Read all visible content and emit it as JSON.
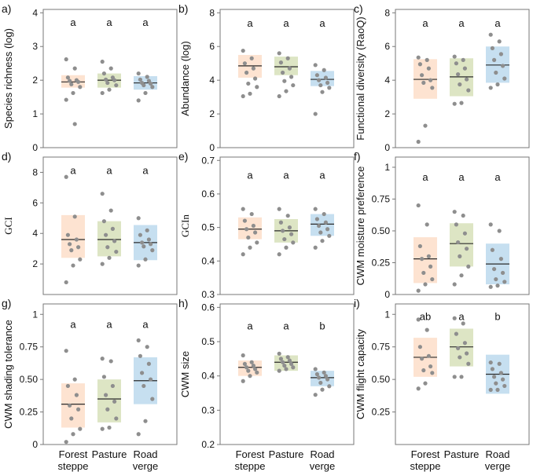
{
  "colors": {
    "forest_steppe": "#fde3d1",
    "pasture": "#dde5c4",
    "road_verge": "#c6dff0",
    "point": "#8e8e8e",
    "median": "#2b2b2b",
    "frame": "#777777"
  },
  "x_axis": {
    "categories": [
      "Forest steppe",
      "Pasture",
      "Road verge"
    ],
    "label_lines": [
      [
        "Forest",
        "steppe"
      ],
      [
        "Pasture",
        ""
      ],
      [
        "Road",
        "verge"
      ]
    ]
  },
  "chart_data": [
    {
      "panel": "a)",
      "type": "box_strip",
      "ylabel": "Species richness (log)",
      "ylabel_font": "sans",
      "ylim": [
        0,
        4.1
      ],
      "ticks": [
        0,
        1,
        2,
        3,
        4
      ],
      "tick_labels": [
        "0",
        "1",
        "2",
        "3",
        "4"
      ],
      "letters": [
        "a",
        "a",
        "a"
      ],
      "letter_y": 3.7,
      "groups": [
        {
          "name": "Forest steppe",
          "q1": 1.78,
          "median": 1.95,
          "q3": 2.15,
          "points": [
            2.62,
            2.35,
            2.08,
            2.0,
            1.98,
            1.95,
            1.88,
            1.8,
            1.62,
            1.42,
            0.7
          ]
        },
        {
          "name": "Pasture",
          "q1": 1.78,
          "median": 2.0,
          "q3": 2.2,
          "points": [
            2.55,
            2.35,
            2.2,
            2.08,
            2.02,
            2.0,
            1.92,
            1.85,
            1.72,
            1.62
          ]
        },
        {
          "name": "Road verge",
          "q1": 1.72,
          "median": 1.92,
          "q3": 2.12,
          "points": [
            2.2,
            2.1,
            2.02,
            1.98,
            1.92,
            1.9,
            1.85,
            1.8,
            1.62,
            1.4
          ]
        }
      ]
    },
    {
      "panel": "b)",
      "type": "box_strip",
      "ylabel": "Abundance (log)",
      "ylabel_font": "sans",
      "ylim": [
        0,
        8.2
      ],
      "ticks": [
        0,
        2,
        4,
        6,
        8
      ],
      "tick_labels": [
        "0",
        "2",
        "4",
        "6",
        "8"
      ],
      "letters": [
        "a",
        "a",
        "a"
      ],
      "letter_y": 7.35,
      "groups": [
        {
          "name": "Forest steppe",
          "q1": 4.15,
          "median": 4.85,
          "q3": 5.5,
          "points": [
            5.75,
            5.3,
            5.0,
            4.7,
            4.45,
            4.1,
            3.8,
            3.6,
            3.2,
            3.05
          ]
        },
        {
          "name": "Pasture",
          "q1": 4.3,
          "median": 4.8,
          "q3": 5.4,
          "points": [
            5.6,
            5.3,
            5.05,
            4.7,
            4.45,
            4.2,
            3.95,
            3.7,
            3.35,
            3.05
          ]
        },
        {
          "name": "Road verge",
          "q1": 3.65,
          "median": 4.05,
          "q3": 4.55,
          "points": [
            4.9,
            4.6,
            4.3,
            4.15,
            4.0,
            3.85,
            3.7,
            3.55,
            3.3,
            2.0
          ]
        }
      ]
    },
    {
      "panel": "c)",
      "type": "box_strip",
      "ylabel": "Functional diversity (RaoQ)",
      "ylabel_font": "sans",
      "ylim": [
        0,
        8.2
      ],
      "ticks": [
        0,
        2,
        4,
        6,
        8
      ],
      "tick_labels": [
        "0",
        "2",
        "4",
        "6",
        "8"
      ],
      "letters": [
        "a",
        "a",
        "a"
      ],
      "letter_y": 7.35,
      "groups": [
        {
          "name": "Forest steppe",
          "q1": 2.9,
          "median": 4.05,
          "q3": 5.25,
          "points": [
            5.35,
            5.2,
            4.95,
            4.7,
            4.3,
            4.0,
            3.85,
            3.55,
            1.3,
            0.35
          ]
        },
        {
          "name": "Pasture",
          "q1": 3.05,
          "median": 4.2,
          "q3": 5.3,
          "points": [
            5.4,
            5.2,
            5.0,
            4.7,
            4.35,
            4.05,
            3.75,
            3.4,
            2.65,
            2.6
          ]
        },
        {
          "name": "Road verge",
          "q1": 3.85,
          "median": 4.9,
          "q3": 6.0,
          "points": [
            6.7,
            6.3,
            5.9,
            5.55,
            5.2,
            4.85,
            4.45,
            4.1,
            3.75,
            3.55
          ]
        }
      ]
    },
    {
      "panel": "d)",
      "type": "box_strip",
      "ylabel": "GCI",
      "ylabel_font": "serif",
      "ylim": [
        0,
        9
      ],
      "ticks": [
        2,
        4,
        6,
        8
      ],
      "tick_labels": [
        "2",
        "4",
        "6",
        "8"
      ],
      "letters": [
        "a",
        "a",
        "a"
      ],
      "letter_y": 8.1,
      "groups": [
        {
          "name": "Forest steppe",
          "q1": 2.4,
          "median": 3.6,
          "q3": 5.2,
          "points": [
            7.7,
            5.1,
            3.9,
            3.6,
            3.3,
            3.1,
            2.9,
            2.3,
            1.9,
            0.8
          ]
        },
        {
          "name": "Pasture",
          "q1": 2.5,
          "median": 3.6,
          "q3": 4.8,
          "points": [
            6.6,
            5.5,
            4.8,
            4.3,
            3.9,
            3.5,
            3.1,
            2.8,
            2.4,
            2.0
          ]
        },
        {
          "name": "Road verge",
          "q1": 2.25,
          "median": 3.4,
          "q3": 4.55,
          "points": [
            5.0,
            4.2,
            3.9,
            3.6,
            3.4,
            3.3,
            3.15,
            2.9,
            2.3,
            1.9
          ]
        }
      ]
    },
    {
      "panel": "e)",
      "type": "box_strip",
      "ylabel": "GCIn",
      "ylabel_font": "serif",
      "ylim": [
        0.3,
        0.71
      ],
      "ticks": [
        0.3,
        0.4,
        0.5,
        0.6,
        0.7
      ],
      "tick_labels": [
        "0.3",
        "0.4",
        "0.5",
        "0.6",
        "0.7"
      ],
      "letters": [
        "a",
        "a",
        "a"
      ],
      "letter_y": 0.655,
      "groups": [
        {
          "name": "Forest steppe",
          "q1": 0.465,
          "median": 0.495,
          "q3": 0.53,
          "points": [
            0.555,
            0.54,
            0.52,
            0.505,
            0.495,
            0.485,
            0.47,
            0.455,
            0.44,
            0.42
          ]
        },
        {
          "name": "Pasture",
          "q1": 0.455,
          "median": 0.49,
          "q3": 0.525,
          "points": [
            0.555,
            0.535,
            0.515,
            0.5,
            0.49,
            0.48,
            0.465,
            0.455,
            0.44,
            0.42
          ]
        },
        {
          "name": "Road verge",
          "q1": 0.475,
          "median": 0.51,
          "q3": 0.54,
          "points": [
            0.555,
            0.54,
            0.525,
            0.515,
            0.505,
            0.495,
            0.485,
            0.475,
            0.46,
            0.44
          ]
        }
      ]
    },
    {
      "panel": "f)",
      "type": "box_strip",
      "ylabel": "CWM moisture preference",
      "ylabel_font": "sans",
      "ylim": [
        0,
        1.08
      ],
      "ticks": [
        0,
        0.25,
        0.5,
        0.75,
        1
      ],
      "tick_labels": [
        "0",
        "0.25",
        "0.50",
        "0.75",
        "1"
      ],
      "letters": [
        "a",
        "a",
        "a"
      ],
      "letter_y": 0.92,
      "groups": [
        {
          "name": "Forest steppe",
          "q1": 0.09,
          "median": 0.28,
          "q3": 0.45,
          "points": [
            0.7,
            0.55,
            0.38,
            0.3,
            0.28,
            0.22,
            0.17,
            0.12,
            0.08,
            0.03
          ]
        },
        {
          "name": "Pasture",
          "q1": 0.22,
          "median": 0.4,
          "q3": 0.56,
          "points": [
            0.65,
            0.62,
            0.55,
            0.48,
            0.41,
            0.36,
            0.3,
            0.22,
            0.15,
            0.08
          ]
        },
        {
          "name": "Road verge",
          "q1": 0.08,
          "median": 0.24,
          "q3": 0.4,
          "points": [
            0.55,
            0.5,
            0.35,
            0.28,
            0.2,
            0.17,
            0.12,
            0.1,
            0.07,
            0.06
          ]
        }
      ]
    },
    {
      "panel": "g)",
      "type": "box_strip",
      "ylabel": "CWM shading tolerance",
      "ylabel_font": "sans",
      "ylim": [
        0,
        1.08
      ],
      "ticks": [
        0,
        0.25,
        0.5,
        0.75,
        1
      ],
      "tick_labels": [
        "0",
        "0.25",
        "0.50",
        "0.75",
        "1"
      ],
      "letters": [
        "a",
        "a",
        "a"
      ],
      "letter_y": 0.92,
      "groups": [
        {
          "name": "Forest steppe",
          "q1": 0.13,
          "median": 0.31,
          "q3": 0.47,
          "points": [
            0.72,
            0.5,
            0.45,
            0.38,
            0.3,
            0.27,
            0.2,
            0.12,
            0.08,
            0.02
          ]
        },
        {
          "name": "Pasture",
          "q1": 0.17,
          "median": 0.35,
          "q3": 0.5,
          "points": [
            0.66,
            0.64,
            0.52,
            0.45,
            0.38,
            0.33,
            0.27,
            0.2,
            0.13,
            0.12
          ]
        },
        {
          "name": "Road verge",
          "q1": 0.31,
          "median": 0.49,
          "q3": 0.67,
          "points": [
            0.8,
            0.75,
            0.68,
            0.62,
            0.55,
            0.5,
            0.45,
            0.35,
            0.18,
            0.08
          ]
        }
      ]
    },
    {
      "panel": "h)",
      "type": "box_strip",
      "ylabel": "CWM size",
      "ylabel_font": "sans",
      "ylim": [
        0.2,
        0.61
      ],
      "ticks": [
        0.2,
        0.3,
        0.4,
        0.5,
        0.6
      ],
      "tick_labels": [
        "0.2",
        "0.3",
        "0.4",
        "0.5",
        "0.6"
      ],
      "letters": [
        "a",
        "a",
        "b"
      ],
      "letter_y": 0.545,
      "groups": [
        {
          "name": "Forest steppe",
          "q1": 0.4,
          "median": 0.425,
          "q3": 0.445,
          "points": [
            0.46,
            0.44,
            0.435,
            0.43,
            0.425,
            0.42,
            0.415,
            0.41,
            0.4,
            0.385
          ]
        },
        {
          "name": "Pasture",
          "q1": 0.415,
          "median": 0.44,
          "q3": 0.46,
          "points": [
            0.465,
            0.455,
            0.45,
            0.445,
            0.44,
            0.435,
            0.43,
            0.425,
            0.42,
            0.415
          ]
        },
        {
          "name": "Road verge",
          "q1": 0.37,
          "median": 0.395,
          "q3": 0.415,
          "points": [
            0.42,
            0.41,
            0.405,
            0.4,
            0.395,
            0.39,
            0.38,
            0.37,
            0.36,
            0.345
          ]
        }
      ]
    },
    {
      "panel": "i)",
      "type": "box_strip",
      "ylabel": "CWM flight capacity",
      "ylabel_font": "sans",
      "ylim": [
        0,
        1.08
      ],
      "ticks": [
        0.25,
        0.5,
        0.75,
        1
      ],
      "tick_labels": [
        "0.25",
        "0.50",
        "0.75",
        "1"
      ],
      "letters": [
        "ab",
        "a",
        "b"
      ],
      "letter_y": 0.98,
      "groups": [
        {
          "name": "Forest steppe",
          "q1": 0.52,
          "median": 0.67,
          "q3": 0.82,
          "points": [
            0.96,
            0.88,
            0.75,
            0.68,
            0.66,
            0.6,
            0.57,
            0.55,
            0.47,
            0.43
          ]
        },
        {
          "name": "Pasture",
          "q1": 0.6,
          "median": 0.75,
          "q3": 0.89,
          "points": [
            0.97,
            0.93,
            0.85,
            0.78,
            0.74,
            0.7,
            0.67,
            0.62,
            0.52,
            0.52
          ]
        },
        {
          "name": "Road verge",
          "q1": 0.39,
          "median": 0.54,
          "q3": 0.69,
          "points": [
            0.63,
            0.62,
            0.58,
            0.55,
            0.52,
            0.5,
            0.47,
            0.45,
            0.42,
            0.42
          ]
        }
      ]
    }
  ]
}
